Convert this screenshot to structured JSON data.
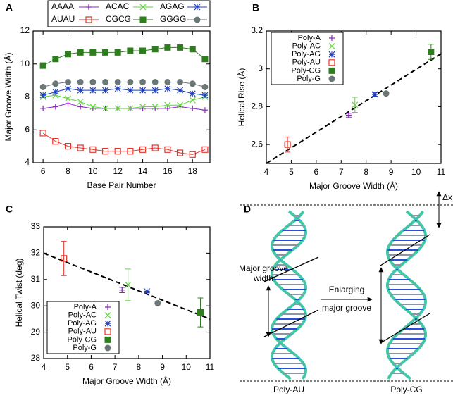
{
  "chart_data": [
    {
      "type": "line",
      "panel_label": "A",
      "xlabel": "Base Pair Number",
      "ylabel": "Major Groove Width (Å)",
      "xlim": [
        5.2,
        19.4
      ],
      "ylim": [
        4,
        12
      ],
      "xticks": [
        6,
        8,
        10,
        12,
        14,
        16,
        18
      ],
      "yticks": [
        4,
        6,
        8,
        10,
        12
      ],
      "legend": "top outside",
      "x": [
        6,
        7,
        8,
        9,
        10,
        11,
        12,
        13,
        14,
        15,
        16,
        17,
        18,
        19
      ],
      "series": [
        {
          "name": "AAAA",
          "color": "#8e24c8",
          "marker": "plus",
          "values": [
            7.3,
            7.4,
            7.6,
            7.4,
            7.3,
            7.3,
            7.3,
            7.3,
            7.3,
            7.3,
            7.3,
            7.4,
            7.3,
            7.2
          ]
        },
        {
          "name": "ACAC",
          "color": "#5fd63a",
          "marker": "cross",
          "values": [
            8.0,
            8.1,
            7.9,
            7.7,
            7.4,
            7.3,
            7.3,
            7.3,
            7.4,
            7.4,
            7.5,
            7.5,
            7.8,
            8.0
          ]
        },
        {
          "name": "AGAG",
          "color": "#1f3fc2",
          "marker": "star",
          "values": [
            8.1,
            8.3,
            8.5,
            8.4,
            8.4,
            8.4,
            8.5,
            8.4,
            8.4,
            8.4,
            8.5,
            8.4,
            8.2,
            8.1
          ]
        },
        {
          "name": "AUAU",
          "color": "#e4372c",
          "marker": "open-square",
          "values": [
            5.8,
            5.3,
            5.0,
            4.9,
            4.8,
            4.7,
            4.7,
            4.7,
            4.8,
            4.9,
            4.8,
            4.6,
            4.5,
            4.8
          ]
        },
        {
          "name": "CGCG",
          "color": "#2f7d1f",
          "marker": "square",
          "values": [
            9.9,
            10.3,
            10.6,
            10.7,
            10.7,
            10.7,
            10.7,
            10.8,
            10.8,
            10.9,
            11.0,
            11.0,
            10.9,
            10.3
          ]
        },
        {
          "name": "GGGG",
          "color": "#6b7676",
          "marker": "circle",
          "values": [
            8.6,
            8.8,
            8.9,
            8.9,
            8.9,
            8.9,
            8.9,
            8.9,
            8.9,
            8.9,
            8.9,
            8.9,
            8.8,
            8.6
          ]
        }
      ]
    },
    {
      "type": "scatter",
      "panel_label": "B",
      "xlabel": "Major Groove Width (Å)",
      "ylabel": "Helical Rise (Å)",
      "xlim": [
        4,
        11
      ],
      "ylim": [
        2.5,
        3.2
      ],
      "xticks": [
        4,
        5,
        6,
        7,
        8,
        9,
        10,
        11
      ],
      "yticks": [
        2.6,
        2.8,
        3,
        3.2
      ],
      "legend": "upper left",
      "fit_line": {
        "x": [
          4,
          11
        ],
        "y": [
          2.5,
          3.08
        ]
      },
      "series": [
        {
          "name": "Poly-A",
          "color": "#8e24c8",
          "marker": "plus",
          "x": [
            7.3
          ],
          "values": [
            2.755
          ],
          "errors": [
            0.01
          ]
        },
        {
          "name": "Poly-AC",
          "color": "#5fd63a",
          "marker": "cross",
          "x": [
            7.55
          ],
          "values": [
            2.81
          ],
          "errors": [
            0.04
          ]
        },
        {
          "name": "Poly-AG",
          "color": "#1f3fc2",
          "marker": "star",
          "x": [
            8.35
          ],
          "values": [
            2.865
          ],
          "errors": [
            0.01
          ]
        },
        {
          "name": "Poly-AU",
          "color": "#e4372c",
          "marker": "open-square",
          "x": [
            4.85
          ],
          "values": [
            2.6
          ],
          "errors": [
            0.04
          ]
        },
        {
          "name": "Poly-CG",
          "color": "#2f7d1f",
          "marker": "square",
          "x": [
            10.6
          ],
          "values": [
            3.09
          ],
          "errors": [
            0.04
          ]
        },
        {
          "name": "Poly-G",
          "color": "#6b7676",
          "marker": "circle",
          "x": [
            8.8
          ],
          "values": [
            2.87
          ],
          "errors": [
            0
          ]
        }
      ]
    },
    {
      "type": "scatter",
      "panel_label": "C",
      "xlabel": "Major Groove Width (Å)",
      "ylabel": "Helical Twist (deg)",
      "xlim": [
        4,
        11
      ],
      "ylim": [
        28,
        33
      ],
      "xticks": [
        4,
        5,
        6,
        7,
        8,
        9,
        10,
        11
      ],
      "yticks": [
        28,
        29,
        30,
        31,
        32,
        33
      ],
      "legend": "lower left",
      "fit_line": {
        "x": [
          4,
          11
        ],
        "y": [
          32.0,
          29.5
        ]
      },
      "series": [
        {
          "name": "Poly-A",
          "color": "#8e24c8",
          "marker": "plus",
          "x": [
            7.3
          ],
          "values": [
            30.6
          ],
          "errors": [
            0.1
          ]
        },
        {
          "name": "Poly-AC",
          "color": "#5fd63a",
          "marker": "cross",
          "x": [
            7.55
          ],
          "values": [
            30.8
          ],
          "errors": [
            0.6
          ]
        },
        {
          "name": "Poly-AG",
          "color": "#1f3fc2",
          "marker": "star",
          "x": [
            8.35
          ],
          "values": [
            30.55
          ],
          "errors": [
            0.05
          ]
        },
        {
          "name": "Poly-AU",
          "color": "#e4372c",
          "marker": "open-square",
          "x": [
            4.85
          ],
          "values": [
            31.8
          ],
          "errors": [
            0.65
          ]
        },
        {
          "name": "Poly-CG",
          "color": "#2f7d1f",
          "marker": "square",
          "x": [
            10.6
          ],
          "values": [
            29.75
          ],
          "errors": [
            0.55
          ]
        },
        {
          "name": "Poly-G",
          "color": "#6b7676",
          "marker": "circle",
          "x": [
            8.8
          ],
          "values": [
            30.1
          ],
          "errors": [
            0
          ]
        }
      ]
    }
  ],
  "diagram": {
    "panel_label": "D",
    "delta_label": "Δx",
    "groove_label": [
      "Major groove",
      "width"
    ],
    "arrow_label": [
      "Enlarging",
      "major groove"
    ],
    "left_caption": "Poly-AU",
    "right_caption": "Poly-CG"
  }
}
